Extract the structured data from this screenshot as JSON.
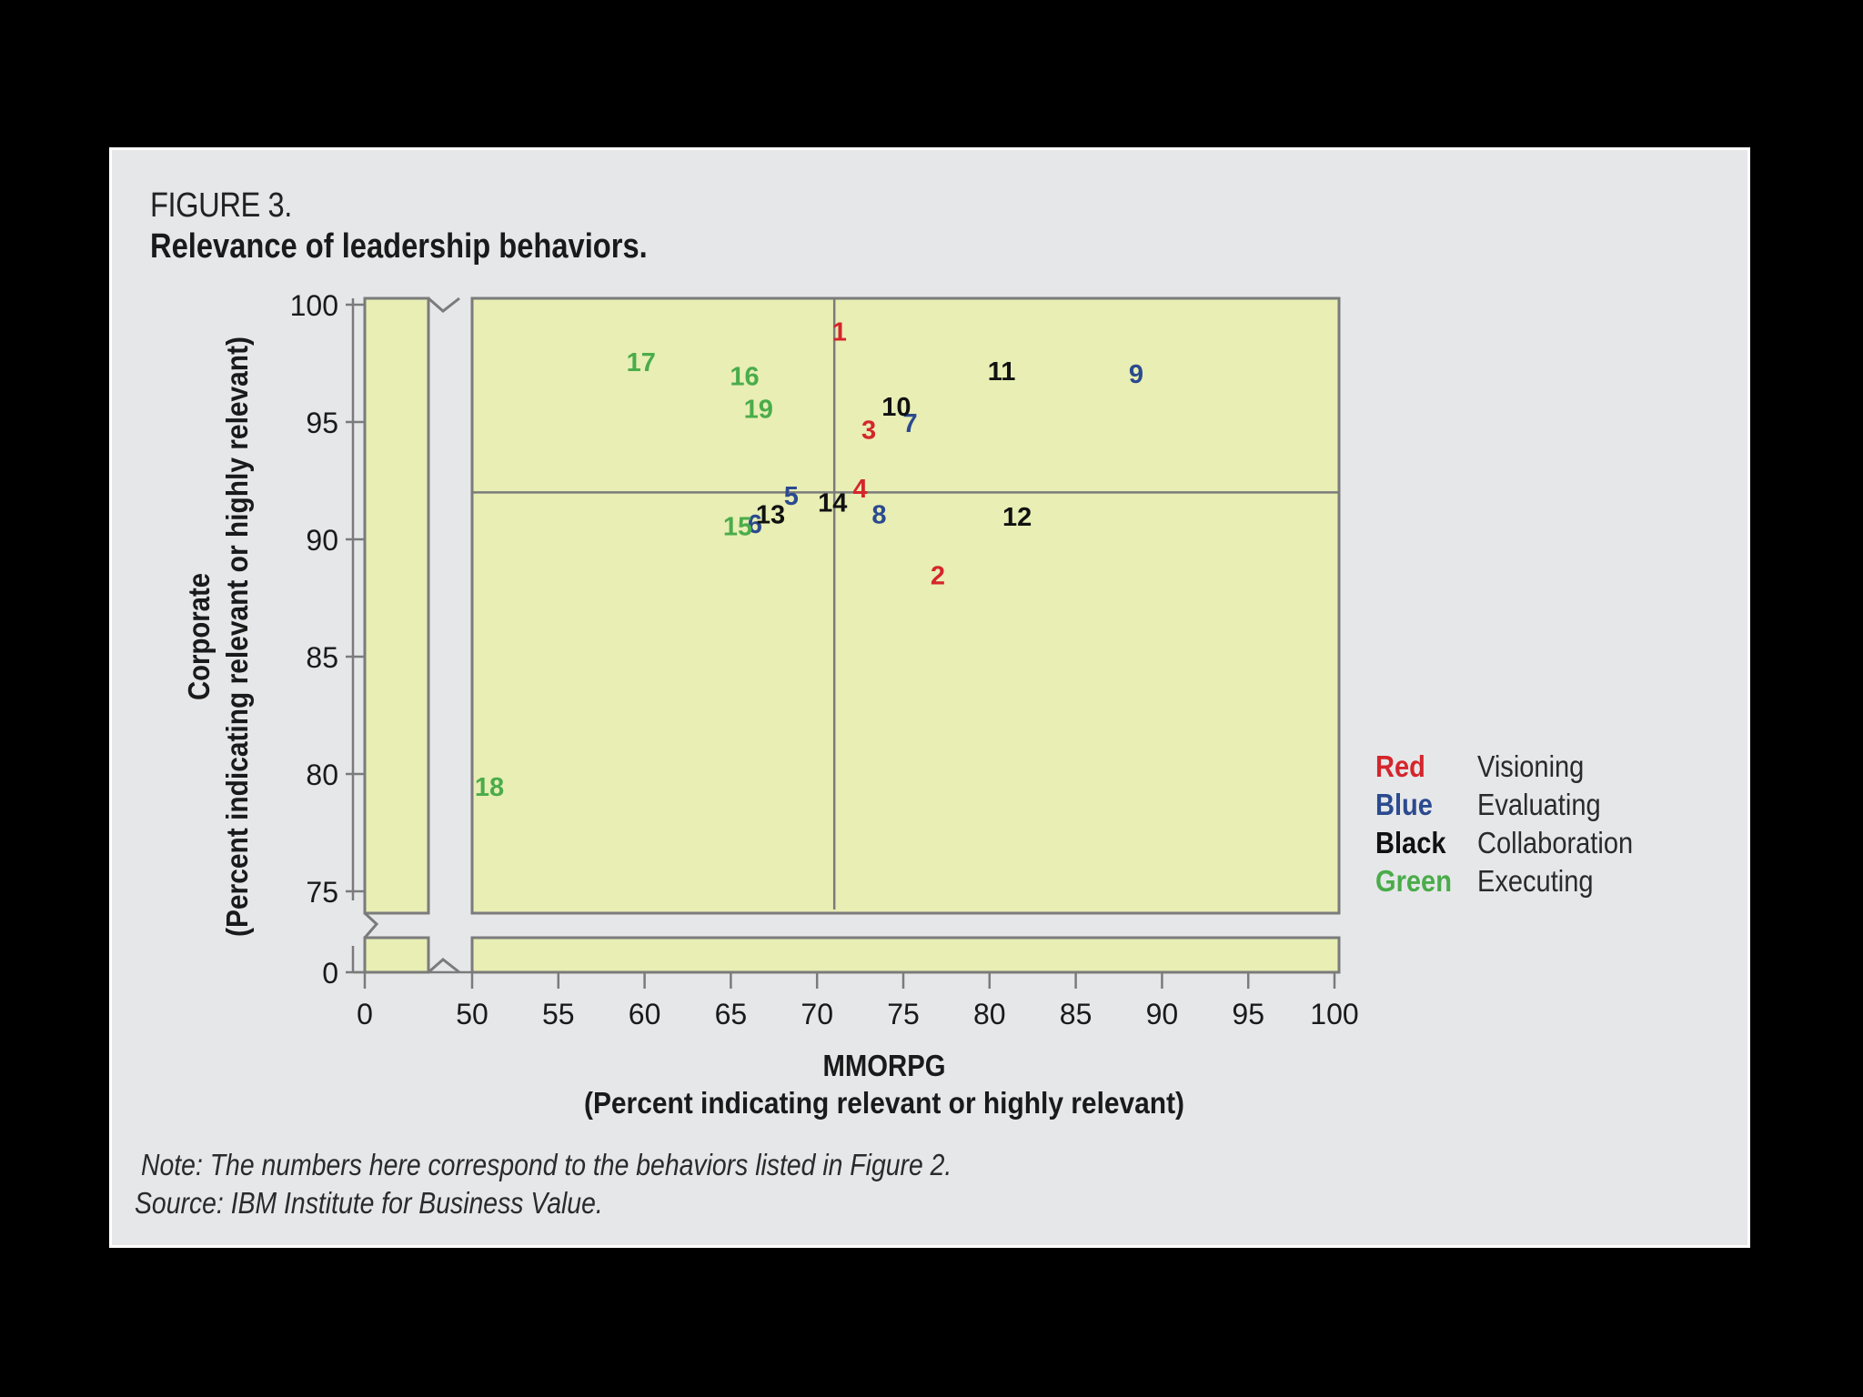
{
  "figure": {
    "number": "FIGURE 3.",
    "title": "Relevance of leadership behaviors."
  },
  "legend": [
    {
      "key": "Red",
      "label": "Visioning",
      "color": "#d4262c"
    },
    {
      "key": "Blue",
      "label": "Evaluating",
      "color": "#2b4a8f"
    },
    {
      "key": "Black",
      "label": "Collaboration",
      "color": "#111111"
    },
    {
      "key": "Green",
      "label": "Executing",
      "color": "#4aac4a"
    }
  ],
  "note": "Note: The numbers here correspond to the behaviors listed in Figure 2.",
  "source": "Source: IBM Institute for Business Value.",
  "chart_data": {
    "type": "scatter",
    "title": "Relevance of leadership behaviors.",
    "xlabel": "MMORPG",
    "xlabel_sub": "(Percent indicating relevant or highly relevant)",
    "ylabel": "Corporate",
    "ylabel_sub": "(Percent indicating relevant or highly relevant)",
    "x_ticks": [
      "0",
      "50",
      "55",
      "60",
      "65",
      "70",
      "75",
      "80",
      "85",
      "90",
      "95",
      "100"
    ],
    "y_ticks": [
      "0",
      "75",
      "80",
      "85",
      "90",
      "95",
      "100"
    ],
    "xlim": [
      50,
      100
    ],
    "ylim": [
      75,
      100
    ],
    "axis_breaks": {
      "x": [
        0,
        50
      ],
      "y": [
        0,
        75
      ]
    },
    "reference_lines": {
      "x": 71,
      "y": 92
    },
    "plot_background": "#e8eeb4",
    "grid": false,
    "legend_position": "right",
    "points": [
      {
        "label": "1",
        "x": 71.3,
        "y": 98.9,
        "group": "Visioning"
      },
      {
        "label": "2",
        "x": 77.0,
        "y": 88.5,
        "group": "Visioning"
      },
      {
        "label": "3",
        "x": 73.0,
        "y": 94.7,
        "group": "Visioning"
      },
      {
        "label": "4",
        "x": 72.5,
        "y": 92.2,
        "group": "Visioning"
      },
      {
        "label": "5",
        "x": 68.5,
        "y": 91.9,
        "group": "Evaluating"
      },
      {
        "label": "6",
        "x": 66.4,
        "y": 90.7,
        "group": "Evaluating"
      },
      {
        "label": "7",
        "x": 75.4,
        "y": 95.0,
        "group": "Evaluating"
      },
      {
        "label": "8",
        "x": 73.6,
        "y": 91.1,
        "group": "Evaluating"
      },
      {
        "label": "9",
        "x": 88.5,
        "y": 97.1,
        "group": "Evaluating"
      },
      {
        "label": "10",
        "x": 74.6,
        "y": 95.7,
        "group": "Collaboration"
      },
      {
        "label": "11",
        "x": 80.7,
        "y": 97.2,
        "group": "Collaboration"
      },
      {
        "label": "12",
        "x": 81.6,
        "y": 91.0,
        "group": "Collaboration"
      },
      {
        "label": "13",
        "x": 67.3,
        "y": 91.1,
        "group": "Collaboration"
      },
      {
        "label": "14",
        "x": 70.9,
        "y": 91.6,
        "group": "Collaboration"
      },
      {
        "label": "15",
        "x": 65.4,
        "y": 90.6,
        "group": "Executing"
      },
      {
        "label": "16",
        "x": 65.8,
        "y": 97.0,
        "group": "Executing"
      },
      {
        "label": "17",
        "x": 59.8,
        "y": 97.6,
        "group": "Executing"
      },
      {
        "label": "18",
        "x": 51.0,
        "y": 79.5,
        "group": "Executing"
      },
      {
        "label": "19",
        "x": 66.6,
        "y": 95.6,
        "group": "Executing"
      }
    ]
  }
}
